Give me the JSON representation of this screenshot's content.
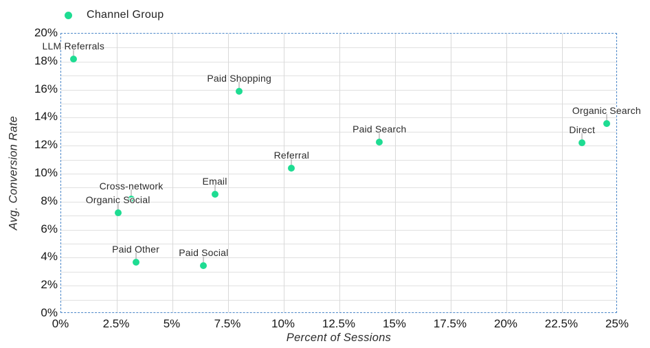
{
  "legend": {
    "label": "Channel Group"
  },
  "colors": {
    "point": "#1edc92",
    "plot_border": "#4a86c8",
    "grid_major": "#d9d9d9",
    "grid_minor": "#e0e0e0",
    "tick_text": "#161616",
    "label_text": "#2a2a2a"
  },
  "chart_data": {
    "type": "scatter",
    "title": "",
    "xlabel": "Percent of Sessions",
    "ylabel": "Avg. Conversion Rate",
    "xlim": [
      0,
      25
    ],
    "ylim": [
      0,
      20
    ],
    "x_ticks": [
      "0%",
      "2.5%",
      "5%",
      "7.5%",
      "10%",
      "12.5%",
      "15%",
      "17.5%",
      "20%",
      "22.5%",
      "25%"
    ],
    "x_tick_values": [
      0,
      2.5,
      5,
      7.5,
      10,
      12.5,
      15,
      17.5,
      20,
      22.5,
      25
    ],
    "y_ticks": [
      "0%",
      "2%",
      "4%",
      "6%",
      "8%",
      "10%",
      "12%",
      "14%",
      "16%",
      "18%",
      "20%"
    ],
    "y_tick_values": [
      0,
      2,
      4,
      6,
      8,
      10,
      12,
      14,
      16,
      18,
      20
    ],
    "grid": {
      "x_minor_step": 2.5,
      "y_minor_step": 1,
      "grid_on": true
    },
    "legend_position": "top-left",
    "series": [
      {
        "name": "Channel Group",
        "color": "#1edc92",
        "points": [
          {
            "label": "LLM Referrals",
            "x": 0.55,
            "y": 18.2
          },
          {
            "label": "Cross-network",
            "x": 3.15,
            "y": 8.2
          },
          {
            "label": "Organic Social",
            "x": 2.55,
            "y": 7.2
          },
          {
            "label": "Paid Other",
            "x": 3.35,
            "y": 3.7
          },
          {
            "label": "Paid Social",
            "x": 6.4,
            "y": 3.45
          },
          {
            "label": "Email",
            "x": 6.9,
            "y": 8.55
          },
          {
            "label": "Paid Shopping",
            "x": 8.0,
            "y": 15.9
          },
          {
            "label": "Referral",
            "x": 10.35,
            "y": 10.4
          },
          {
            "label": "Paid Search",
            "x": 14.3,
            "y": 12.25
          },
          {
            "label": "Direct",
            "x": 23.4,
            "y": 12.2
          },
          {
            "label": "Organic Search",
            "x": 24.5,
            "y": 13.6
          }
        ]
      }
    ]
  }
}
